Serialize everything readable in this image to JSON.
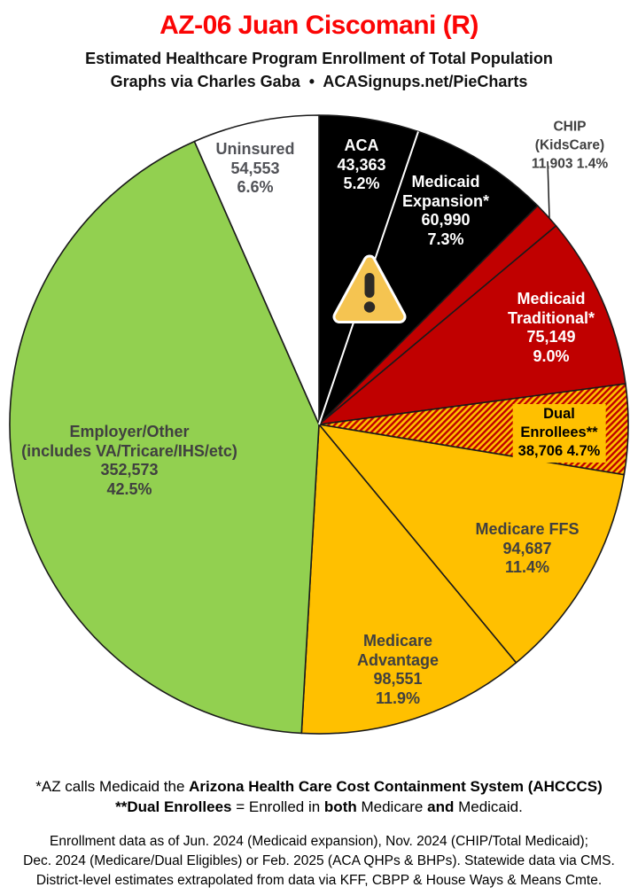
{
  "header": {
    "title": "AZ-06 Juan Ciscomani (R)",
    "subtitle1": "Estimated Healthcare Program Enrollment of Total Population",
    "subtitle2": "Graphs via Charles Gaba  •  ACASignups.net/PieCharts"
  },
  "palette": {
    "title_red": "#fb0505",
    "black_slice": "#000000",
    "red_slice": "#C00000",
    "gold_slice": "#FFC000",
    "green_slice": "#92D050",
    "white_slice": "#FFFFFF",
    "slice_outline": "#1a1a1a",
    "dark_label_text": "#404040",
    "warning_gold": "#F5C451"
  },
  "icons": {
    "warning": "⚠"
  },
  "chart_data": {
    "type": "pie",
    "title": "AZ-06 Juan Ciscomani (R)",
    "subtitle": "Estimated Healthcare Program Enrollment of Total Population",
    "start_angle_deg": 0,
    "direction": "clockwise",
    "legend": "labels-on-slices",
    "slices": [
      {
        "name": "ACA",
        "value": "43,363",
        "value_num": 43363,
        "pct": "5.2%",
        "pct_num": 5.2,
        "color": "#000000",
        "text_color": "#ffffff",
        "pattern": null
      },
      {
        "name": "Medicaid\nExpansion*",
        "value": "60,990",
        "value_num": 60990,
        "pct": "7.3%",
        "pct_num": 7.3,
        "color": "#000000",
        "text_color": "#ffffff",
        "pattern": null
      },
      {
        "name": "CHIP (KidsCare)",
        "value": "11,903",
        "value_num": 11903,
        "pct": "1.4%",
        "pct_num": 1.4,
        "color": "#C00000",
        "text_color": "#404040",
        "pattern": null
      },
      {
        "name": "Medicaid\nTraditional*",
        "value": "75,149",
        "value_num": 75149,
        "pct": "9.0%",
        "pct_num": 9.0,
        "color": "#C00000",
        "text_color": "#ffffff",
        "pattern": null
      },
      {
        "name": "Dual Enrollees**",
        "value": "38,706",
        "value_num": 38706,
        "pct": "4.7%",
        "pct_num": 4.7,
        "color": "#FFC000",
        "text_color": "#000000",
        "pattern": "diagonal-red-stripes"
      },
      {
        "name": "Medicare FFS",
        "value": "94,687",
        "value_num": 94687,
        "pct": "11.4%",
        "pct_num": 11.4,
        "color": "#FFC000",
        "text_color": "#404040",
        "pattern": null
      },
      {
        "name": "Medicare\nAdvantage",
        "value": "98,551",
        "value_num": 98551,
        "pct": "11.9%",
        "pct_num": 11.9,
        "color": "#FFC000",
        "text_color": "#404040",
        "pattern": null
      },
      {
        "name": "Employer/Other\n(includes VA/Tricare/IHS/etc)",
        "value": "352,573",
        "value_num": 352573,
        "pct": "42.5%",
        "pct_num": 42.5,
        "color": "#92D050",
        "text_color": "#404040",
        "pattern": null
      },
      {
        "name": "Uninsured",
        "value": "54,553",
        "value_num": 54553,
        "pct": "6.6%",
        "pct_num": 6.6,
        "color": "#FFFFFF",
        "text_color": "#515257",
        "pattern": null
      }
    ]
  },
  "footer": {
    "note1_pre": "*AZ calls Medicaid the ",
    "note1_bold": "Arizona Health Care Cost Containment System (AHCCCS)",
    "note2_bold1": "**Dual Enrollees",
    "note2_text1": " = Enrolled in ",
    "note2_bold2": "both",
    "note2_text2": " Medicare ",
    "note2_bold3": "and",
    "note2_text3": " Medicaid.",
    "data_line1": "Enrollment data as of Jun. 2024 (Medicaid expansion), Nov. 2024 (CHIP/Total Medicaid);",
    "data_line2": "Dec. 2024 (Medicare/Dual Eligibles) or Feb. 2025 (ACA QHPs & BHPs). Statewide data via CMS.",
    "data_line3": "District-level estimates extrapolated from data via KFF, CBPP & House Ways & Means Cmte."
  }
}
